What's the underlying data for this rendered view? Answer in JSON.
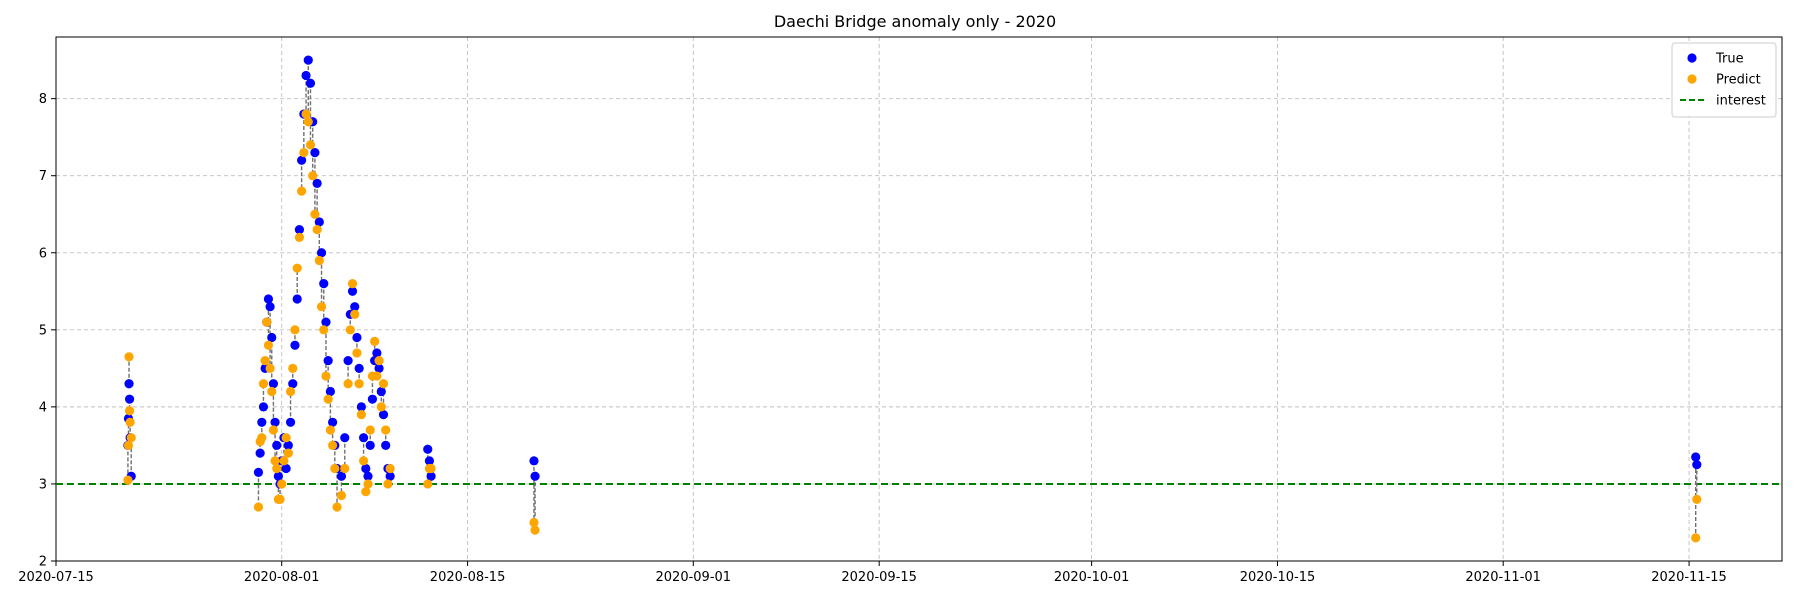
{
  "chart_data": {
    "type": "scatter",
    "title": "Daechi Bridge anomaly only - 2020",
    "xlabel": "",
    "ylabel": "",
    "x_range": [
      "2020-07-15T00:00",
      "2020-11-22T00:00"
    ],
    "ylim": [
      2.0,
      8.8
    ],
    "x_ticks": [
      {
        "date": "2020-07-15",
        "label": "2020-07-15"
      },
      {
        "date": "2020-08-01",
        "label": "2020-08-01"
      },
      {
        "date": "2020-08-15",
        "label": "2020-08-15"
      },
      {
        "date": "2020-09-01",
        "label": "2020-09-01"
      },
      {
        "date": "2020-09-15",
        "label": "2020-09-15"
      },
      {
        "date": "2020-10-01",
        "label": "2020-10-01"
      },
      {
        "date": "2020-10-15",
        "label": "2020-10-15"
      },
      {
        "date": "2020-11-01",
        "label": "2020-11-01"
      },
      {
        "date": "2020-11-15",
        "label": "2020-11-15"
      }
    ],
    "y_ticks": [
      2,
      3,
      4,
      5,
      6,
      7,
      8
    ],
    "grid": true,
    "legend_position": "top-right",
    "interest_threshold": 3.0,
    "series": [
      {
        "name": "True",
        "color": "#0000ff",
        "points": [
          [
            "2020-07-20T10:00",
            3.5
          ],
          [
            "2020-07-20T11:00",
            3.85
          ],
          [
            "2020-07-20T12:00",
            4.3
          ],
          [
            "2020-07-20T13:00",
            4.1
          ],
          [
            "2020-07-20T14:00",
            3.6
          ],
          [
            "2020-07-20T16:00",
            3.1
          ],
          [
            "2020-07-30T06:00",
            3.15
          ],
          [
            "2020-07-30T09:00",
            3.4
          ],
          [
            "2020-07-30T12:00",
            3.8
          ],
          [
            "2020-07-30T15:00",
            4.0
          ],
          [
            "2020-07-30T18:00",
            4.5
          ],
          [
            "2020-07-30T21:00",
            5.1
          ],
          [
            "2020-07-31T00:00",
            5.4
          ],
          [
            "2020-07-31T03:00",
            5.3
          ],
          [
            "2020-07-31T06:00",
            4.9
          ],
          [
            "2020-07-31T09:00",
            4.3
          ],
          [
            "2020-07-31T12:00",
            3.8
          ],
          [
            "2020-07-31T15:00",
            3.5
          ],
          [
            "2020-07-31T18:00",
            3.1
          ],
          [
            "2020-07-31T21:00",
            3.0
          ],
          [
            "2020-08-01T00:00",
            3.3
          ],
          [
            "2020-08-01T04:00",
            3.6
          ],
          [
            "2020-08-01T08:00",
            3.2
          ],
          [
            "2020-08-01T12:00",
            3.5
          ],
          [
            "2020-08-01T16:00",
            3.8
          ],
          [
            "2020-08-01T20:00",
            4.3
          ],
          [
            "2020-08-02T00:00",
            4.8
          ],
          [
            "2020-08-02T04:00",
            5.4
          ],
          [
            "2020-08-02T08:00",
            6.3
          ],
          [
            "2020-08-02T12:00",
            7.2
          ],
          [
            "2020-08-02T16:00",
            7.8
          ],
          [
            "2020-08-02T20:00",
            8.3
          ],
          [
            "2020-08-03T00:00",
            8.5
          ],
          [
            "2020-08-03T04:00",
            8.2
          ],
          [
            "2020-08-03T08:00",
            7.7
          ],
          [
            "2020-08-03T12:00",
            7.3
          ],
          [
            "2020-08-03T16:00",
            6.9
          ],
          [
            "2020-08-03T20:00",
            6.4
          ],
          [
            "2020-08-04T00:00",
            6.0
          ],
          [
            "2020-08-04T04:00",
            5.6
          ],
          [
            "2020-08-04T08:00",
            5.1
          ],
          [
            "2020-08-04T12:00",
            4.6
          ],
          [
            "2020-08-04T16:00",
            4.2
          ],
          [
            "2020-08-04T20:00",
            3.8
          ],
          [
            "2020-08-05T00:00",
            3.5
          ],
          [
            "2020-08-05T04:00",
            3.2
          ],
          [
            "2020-08-05T12:00",
            3.1
          ],
          [
            "2020-08-05T18:00",
            3.6
          ],
          [
            "2020-08-06T00:00",
            4.6
          ],
          [
            "2020-08-06T04:00",
            5.2
          ],
          [
            "2020-08-06T08:00",
            5.5
          ],
          [
            "2020-08-06T12:00",
            5.3
          ],
          [
            "2020-08-06T16:00",
            4.9
          ],
          [
            "2020-08-06T20:00",
            4.5
          ],
          [
            "2020-08-07T00:00",
            4.0
          ],
          [
            "2020-08-07T04:00",
            3.6
          ],
          [
            "2020-08-07T08:00",
            3.2
          ],
          [
            "2020-08-07T12:00",
            3.1
          ],
          [
            "2020-08-07T16:00",
            3.5
          ],
          [
            "2020-08-07T20:00",
            4.1
          ],
          [
            "2020-08-08T00:00",
            4.6
          ],
          [
            "2020-08-08T04:00",
            4.7
          ],
          [
            "2020-08-08T08:00",
            4.5
          ],
          [
            "2020-08-08T12:00",
            4.2
          ],
          [
            "2020-08-08T16:00",
            3.9
          ],
          [
            "2020-08-08T20:00",
            3.5
          ],
          [
            "2020-08-09T00:00",
            3.2
          ],
          [
            "2020-08-09T04:00",
            3.1
          ],
          [
            "2020-08-12T00:00",
            3.45
          ],
          [
            "2020-08-12T03:00",
            3.3
          ],
          [
            "2020-08-12T06:00",
            3.1
          ],
          [
            "2020-08-20T00:00",
            3.3
          ],
          [
            "2020-08-20T02:00",
            3.1
          ],
          [
            "2020-11-15T12:00",
            3.35
          ],
          [
            "2020-11-15T14:00",
            3.25
          ]
        ]
      },
      {
        "name": "Predict",
        "color": "#ffa500",
        "points": [
          [
            "2020-07-20T10:00",
            3.05
          ],
          [
            "2020-07-20T11:00",
            3.5
          ],
          [
            "2020-07-20T12:00",
            4.65
          ],
          [
            "2020-07-20T13:00",
            3.95
          ],
          [
            "2020-07-20T14:00",
            3.8
          ],
          [
            "2020-07-20T16:00",
            3.6
          ],
          [
            "2020-07-30T06:00",
            2.7
          ],
          [
            "2020-07-30T09:00",
            3.55
          ],
          [
            "2020-07-30T12:00",
            3.6
          ],
          [
            "2020-07-30T15:00",
            4.3
          ],
          [
            "2020-07-30T18:00",
            4.6
          ],
          [
            "2020-07-30T21:00",
            5.1
          ],
          [
            "2020-07-31T00:00",
            4.8
          ],
          [
            "2020-07-31T03:00",
            4.5
          ],
          [
            "2020-07-31T06:00",
            4.2
          ],
          [
            "2020-07-31T09:00",
            3.7
          ],
          [
            "2020-07-31T12:00",
            3.3
          ],
          [
            "2020-07-31T15:00",
            3.2
          ],
          [
            "2020-07-31T18:00",
            2.8
          ],
          [
            "2020-07-31T21:00",
            2.8
          ],
          [
            "2020-08-01T00:00",
            3.0
          ],
          [
            "2020-08-01T04:00",
            3.3
          ],
          [
            "2020-08-01T08:00",
            3.6
          ],
          [
            "2020-08-01T12:00",
            3.4
          ],
          [
            "2020-08-01T16:00",
            4.2
          ],
          [
            "2020-08-01T20:00",
            4.5
          ],
          [
            "2020-08-02T00:00",
            5.0
          ],
          [
            "2020-08-02T04:00",
            5.8
          ],
          [
            "2020-08-02T08:00",
            6.2
          ],
          [
            "2020-08-02T12:00",
            6.8
          ],
          [
            "2020-08-02T16:00",
            7.3
          ],
          [
            "2020-08-02T20:00",
            7.8
          ],
          [
            "2020-08-03T00:00",
            7.7
          ],
          [
            "2020-08-03T04:00",
            7.4
          ],
          [
            "2020-08-03T08:00",
            7.0
          ],
          [
            "2020-08-03T12:00",
            6.5
          ],
          [
            "2020-08-03T16:00",
            6.3
          ],
          [
            "2020-08-03T20:00",
            5.9
          ],
          [
            "2020-08-04T00:00",
            5.3
          ],
          [
            "2020-08-04T04:00",
            5.0
          ],
          [
            "2020-08-04T08:00",
            4.4
          ],
          [
            "2020-08-04T12:00",
            4.1
          ],
          [
            "2020-08-04T16:00",
            3.7
          ],
          [
            "2020-08-04T20:00",
            3.5
          ],
          [
            "2020-08-05T00:00",
            3.2
          ],
          [
            "2020-08-05T04:00",
            2.7
          ],
          [
            "2020-08-05T12:00",
            2.85
          ],
          [
            "2020-08-05T18:00",
            3.2
          ],
          [
            "2020-08-06T00:00",
            4.3
          ],
          [
            "2020-08-06T04:00",
            5.0
          ],
          [
            "2020-08-06T08:00",
            5.6
          ],
          [
            "2020-08-06T12:00",
            5.2
          ],
          [
            "2020-08-06T16:00",
            4.7
          ],
          [
            "2020-08-06T20:00",
            4.3
          ],
          [
            "2020-08-07T00:00",
            3.9
          ],
          [
            "2020-08-07T04:00",
            3.3
          ],
          [
            "2020-08-07T08:00",
            2.9
          ],
          [
            "2020-08-07T12:00",
            3.0
          ],
          [
            "2020-08-07T16:00",
            3.7
          ],
          [
            "2020-08-07T20:00",
            4.4
          ],
          [
            "2020-08-08T00:00",
            4.85
          ],
          [
            "2020-08-08T04:00",
            4.4
          ],
          [
            "2020-08-08T08:00",
            4.6
          ],
          [
            "2020-08-08T12:00",
            4.0
          ],
          [
            "2020-08-08T16:00",
            4.3
          ],
          [
            "2020-08-08T20:00",
            3.7
          ],
          [
            "2020-08-09T00:00",
            3.0
          ],
          [
            "2020-08-09T04:00",
            3.2
          ],
          [
            "2020-08-12T00:00",
            3.0
          ],
          [
            "2020-08-12T03:00",
            3.2
          ],
          [
            "2020-08-12T06:00",
            3.2
          ],
          [
            "2020-08-20T00:00",
            2.5
          ],
          [
            "2020-08-20T02:00",
            2.4
          ],
          [
            "2020-11-15T12:00",
            2.3
          ],
          [
            "2020-11-15T14:00",
            2.8
          ]
        ]
      }
    ],
    "legend": [
      {
        "label": "True",
        "marker": "dot",
        "color": "#0000ff"
      },
      {
        "label": "Predict",
        "marker": "dot",
        "color": "#ffa500"
      },
      {
        "label": "interest",
        "marker": "dashed-line",
        "color": "#008000"
      }
    ]
  }
}
